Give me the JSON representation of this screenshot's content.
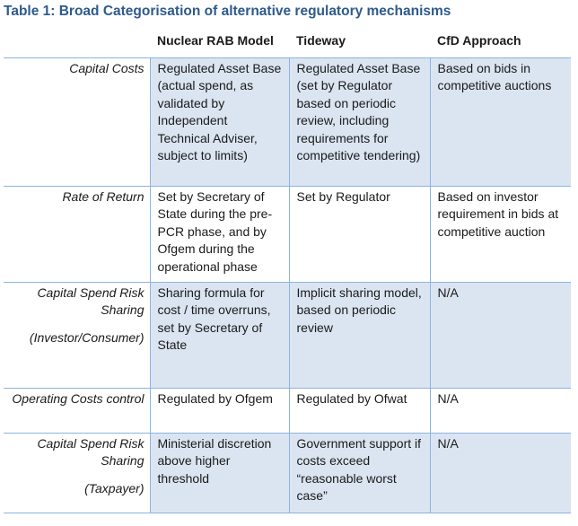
{
  "caption": "Table 1: Broad Categorisation of alternative regulatory mechanisms",
  "headers": [
    "",
    "Nuclear RAB Model",
    "Tideway",
    "CfD Approach"
  ],
  "rows": [
    {
      "label": "Capital Costs",
      "sublabel": "",
      "cells": [
        "Regulated Asset Base (actual spend, as validated by Independent Technical Adviser, subject to limits)",
        "Regulated Asset Base (set by Regulator based on periodic review, including requirements for competitive tendering)",
        "Based on bids in competitive auctions"
      ]
    },
    {
      "label": "Rate of Return",
      "sublabel": "",
      "cells": [
        "Set by Secretary of State during the pre-PCR phase, and by Ofgem during the operational phase",
        "Set by Regulator",
        "Based on investor requirement in bids at competitive auction"
      ]
    },
    {
      "label": "Capital Spend Risk Sharing",
      "sublabel": "(Investor/Consumer)",
      "cells": [
        "Sharing formula for cost / time overruns, set by Secretary of State",
        "Implicit sharing model, based on periodic review",
        "N/A"
      ]
    },
    {
      "label": "Operating Costs control",
      "sublabel": "",
      "cells": [
        "Regulated by Ofgem",
        "Regulated by Ofwat",
        "N/A"
      ]
    },
    {
      "label": "Capital Spend Risk Sharing",
      "sublabel": "(Taxpayer)",
      "cells": [
        "Ministerial discretion above higher threshold",
        "Government support if costs exceed “reasonable worst case”",
        "N/A"
      ]
    }
  ]
}
